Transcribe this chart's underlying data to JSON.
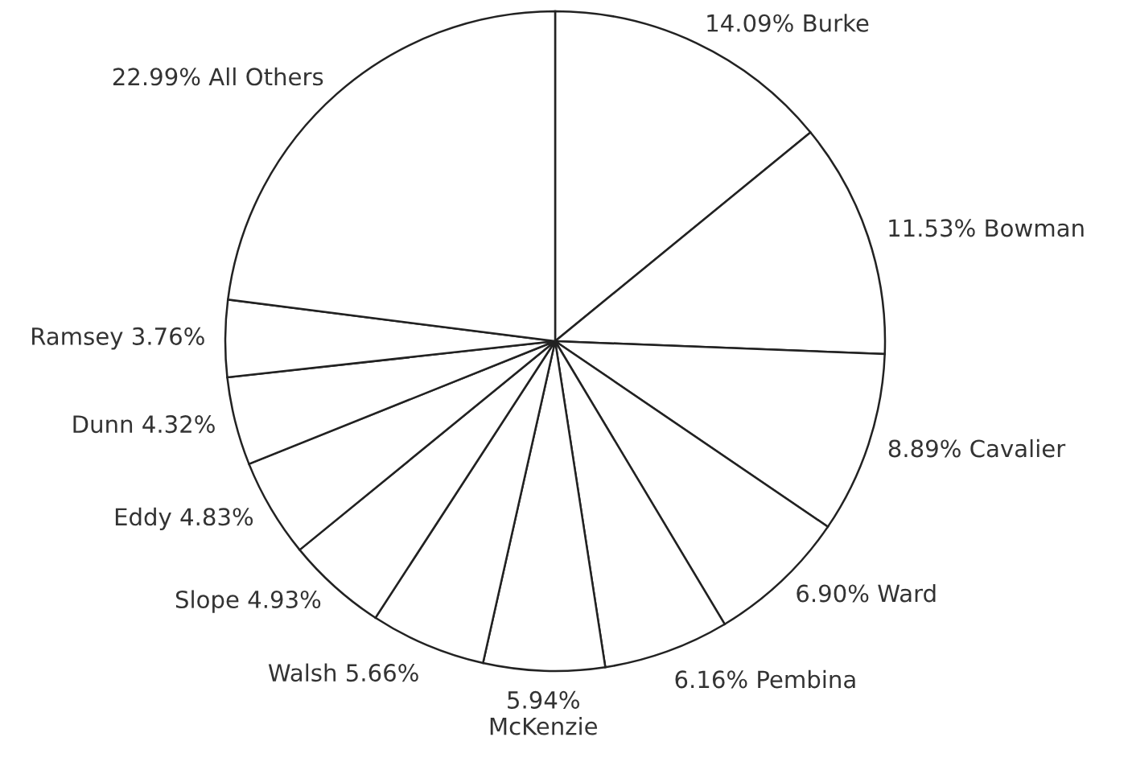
{
  "chart_data": {
    "type": "pie",
    "categories": [
      "Burke",
      "Bowman",
      "Cavalier",
      "Ward",
      "Pembina",
      "McKenzie",
      "Walsh",
      "Slope",
      "Eddy",
      "Dunn",
      "Ramsey",
      "All Others"
    ],
    "values": [
      14.09,
      11.53,
      8.89,
      6.9,
      6.16,
      5.94,
      5.66,
      4.93,
      4.83,
      4.32,
      3.76,
      22.99
    ],
    "value_labels": [
      "14.09%",
      "11.53%",
      "8.89%",
      "6.90%",
      "6.16%",
      "5.94%",
      "5.66%",
      "4.93%",
      "4.83%",
      "4.32%",
      "3.76%",
      "22.99%"
    ],
    "colors": [
      "#ffffff",
      "#ffffff",
      "#ffffff",
      "#ffffff",
      "#ffffff",
      "#ffffff",
      "#ffffff",
      "#ffffff",
      "#ffffff",
      "#ffffff",
      "#ffffff",
      "#ffffff"
    ],
    "legend": false
  }
}
